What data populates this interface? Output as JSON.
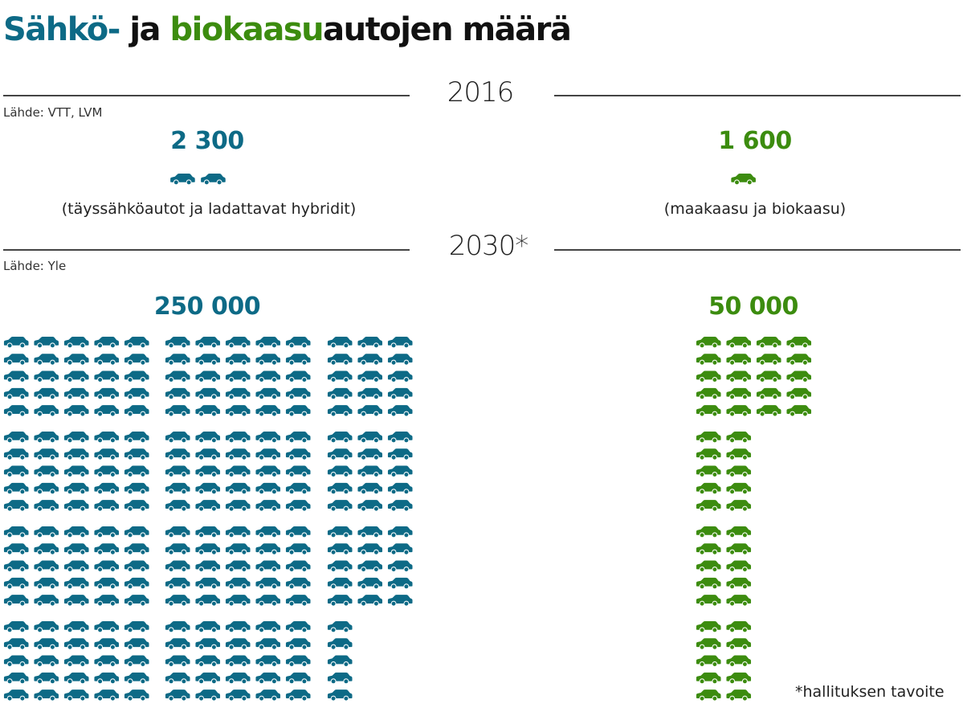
{
  "title": {
    "part_ev": "Sähkö-",
    "part_ja": " ja ",
    "part_bio": "biokaasu",
    "part_rest": "autojen määrä"
  },
  "sections": {
    "y2016": {
      "year": "2016",
      "source": "Lähde: VTT, LVM",
      "ev_value": "2 300",
      "ev_desc": "(täyssähköautot ja ladattavat hybridit)",
      "bio_value": "1 600",
      "bio_desc": "(maakaasu ja biokaasu)"
    },
    "y2030": {
      "year": "2030*",
      "source": "Lähde: Yle",
      "ev_value": "250 000",
      "bio_value": "50 000"
    }
  },
  "footnote": "*hallituksen tavoite",
  "colors": {
    "ev": "#0d6a86",
    "bio": "#3c8c0f"
  },
  "chart_data": {
    "type": "pictogram",
    "unit": "one car icon ≈ 1 000 cars",
    "series": [
      {
        "name": "Sähköautot",
        "color": "#0d6a86",
        "values": [
          {
            "x": "2016",
            "y": 2300
          },
          {
            "x": "2030",
            "y": 250000
          }
        ]
      },
      {
        "name": "Biokaasuautot",
        "color": "#3c8c0f",
        "values": [
          {
            "x": "2016",
            "y": 1600
          },
          {
            "x": "2030",
            "y": 50000
          }
        ]
      }
    ]
  }
}
